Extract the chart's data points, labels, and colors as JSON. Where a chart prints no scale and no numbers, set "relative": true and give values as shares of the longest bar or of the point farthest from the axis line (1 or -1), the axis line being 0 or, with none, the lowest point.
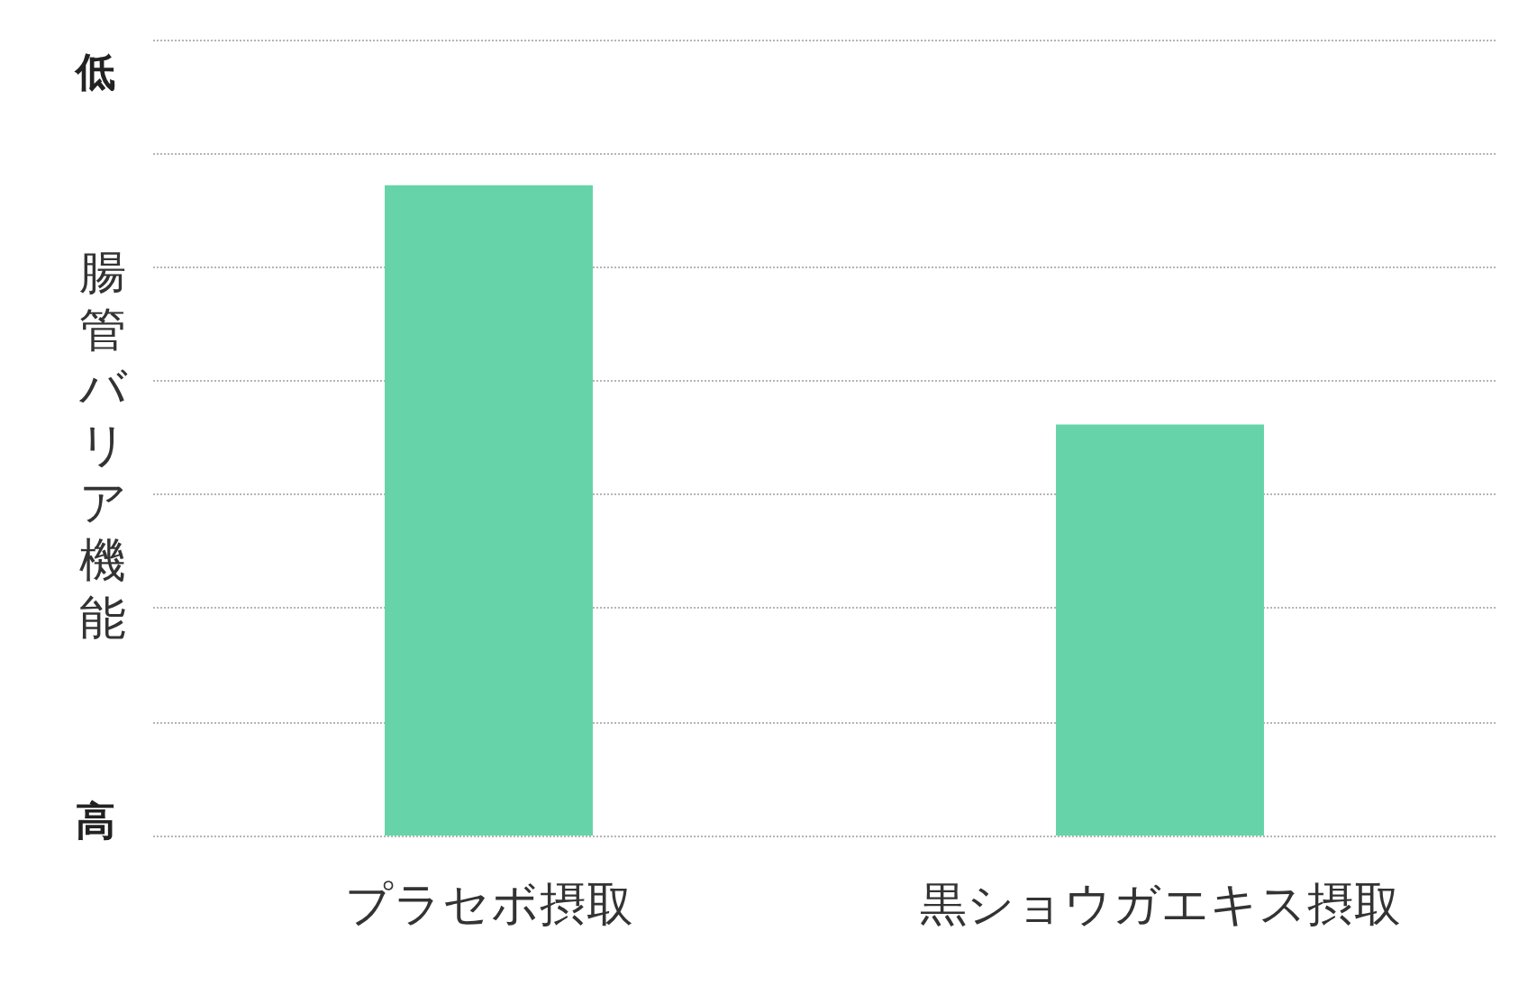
{
  "chart_data": {
    "type": "bar",
    "relative": true,
    "ylabel": "腸管バリア機能",
    "categories": [
      "プラセボ摂取",
      "黒ショウガエキス摂取"
    ],
    "values": [
      1,
      0.632
    ],
    "color": "#66d4a8",
    "grid": "y",
    "annotations": [
      "低",
      "高"
    ]
  }
}
